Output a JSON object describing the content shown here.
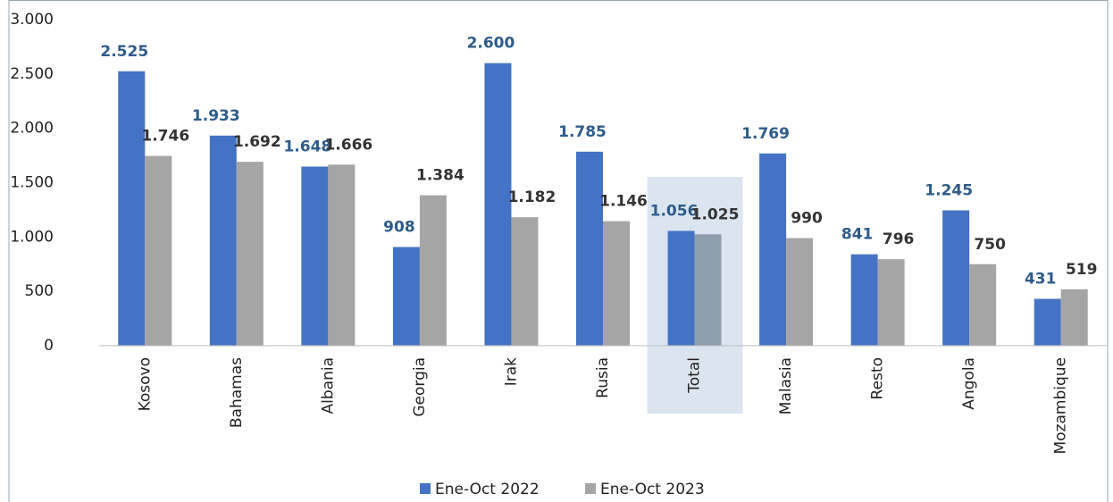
{
  "chart_data": {
    "type": "bar",
    "categories": [
      "Kosovo",
      "Bahamas",
      "Albania",
      "Georgia",
      "Irak",
      "Rusia",
      "Total",
      "Malasia",
      "Resto",
      "Angola",
      "Mozambique"
    ],
    "series": [
      {
        "name": "Ene-Oct 2022",
        "color": "#4472c4",
        "label_color": "#2e5b8a",
        "values": [
          2525,
          1933,
          1648,
          908,
          2600,
          1785,
          1056,
          1769,
          841,
          1245,
          431
        ],
        "value_labels": [
          "2.525",
          "1.933",
          "1.648",
          "908",
          "2.600",
          "1.785",
          "1.056",
          "1.769",
          "841",
          "1.245",
          "431"
        ]
      },
      {
        "name": "Ene-Oct 2023",
        "color": "#a5a5a5",
        "label_color": "#333333",
        "values": [
          1746,
          1692,
          1666,
          1384,
          1182,
          1146,
          1025,
          990,
          796,
          750,
          519
        ],
        "value_labels": [
          "1.746",
          "1.692",
          "1.666",
          "1.384",
          "1.182",
          "1.146",
          "1.025",
          "990",
          "796",
          "750",
          "519"
        ]
      }
    ],
    "ylim": [
      0,
      3000
    ],
    "yticks": [
      0,
      500,
      {
        "value": 1000,
        "label": "1.000"
      },
      {
        "value": 1500,
        "label": "1.500"
      },
      {
        "value": 2000,
        "label": "2.000"
      },
      {
        "value": 2500,
        "label": "2.500"
      },
      {
        "value": 3000,
        "label": "3.000"
      }
    ],
    "grid": false,
    "legend": "bottom"
  }
}
